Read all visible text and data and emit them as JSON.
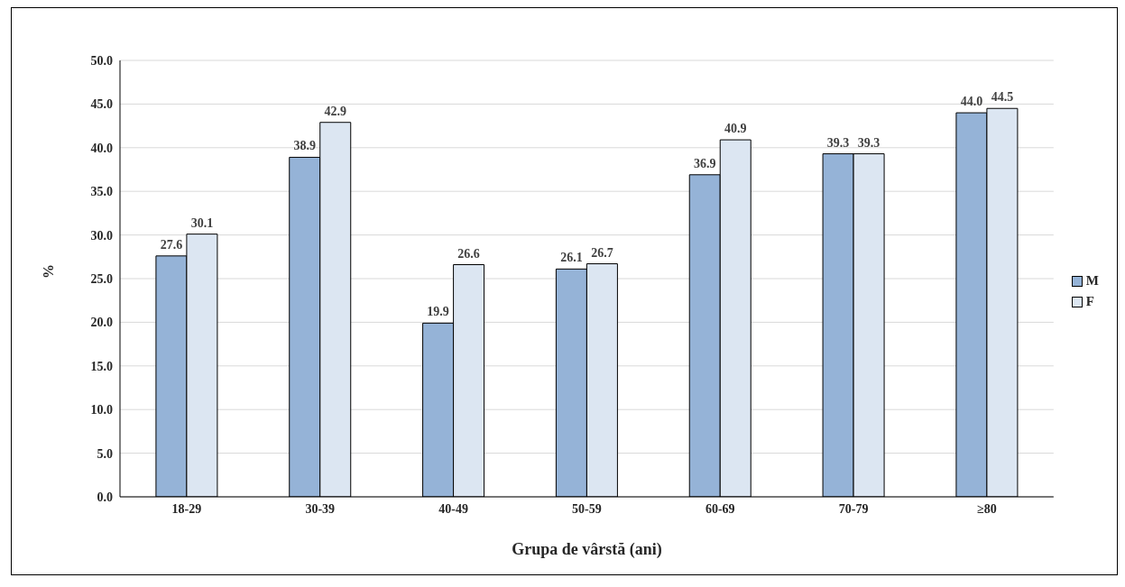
{
  "chart_data": {
    "type": "bar",
    "xlabel": "Grupa  de vârstă (ani)",
    "ylabel": "%",
    "categories": [
      "18-29",
      "30-39",
      "40-49",
      "50-59",
      "60-69",
      "70-79",
      "≥80"
    ],
    "series": [
      {
        "name": "M",
        "color": "#95b3d7",
        "values": [
          27.6,
          38.9,
          19.9,
          26.1,
          36.9,
          39.3,
          44.0
        ],
        "value_labels": [
          "27.6",
          "38.9",
          "19.9",
          "26.1",
          "36.9",
          "39.3",
          "44.0"
        ]
      },
      {
        "name": "F",
        "color": "#dce6f2",
        "values": [
          30.1,
          42.9,
          26.6,
          26.7,
          40.9,
          39.3,
          44.5
        ],
        "value_labels": [
          "30.1",
          "42.9",
          "26.6",
          "26.7",
          "40.9",
          "39.3",
          "44.5"
        ]
      }
    ],
    "ylim": [
      0,
      50
    ],
    "yticks": [
      {
        "value": 0,
        "label": "0.0"
      },
      {
        "value": 5,
        "label": "5.0"
      },
      {
        "value": 10,
        "label": "10.0"
      },
      {
        "value": 15,
        "label": "15.0"
      },
      {
        "value": 20,
        "label": "20.0"
      },
      {
        "value": 25,
        "label": "25.0"
      },
      {
        "value": 30,
        "label": "30.0"
      },
      {
        "value": 35,
        "label": "35.0"
      },
      {
        "value": 40,
        "label": "40.0"
      },
      {
        "value": 45,
        "label": "45.0"
      },
      {
        "value": 50,
        "label": "50.0"
      }
    ],
    "grid": "y",
    "legend": "right"
  }
}
